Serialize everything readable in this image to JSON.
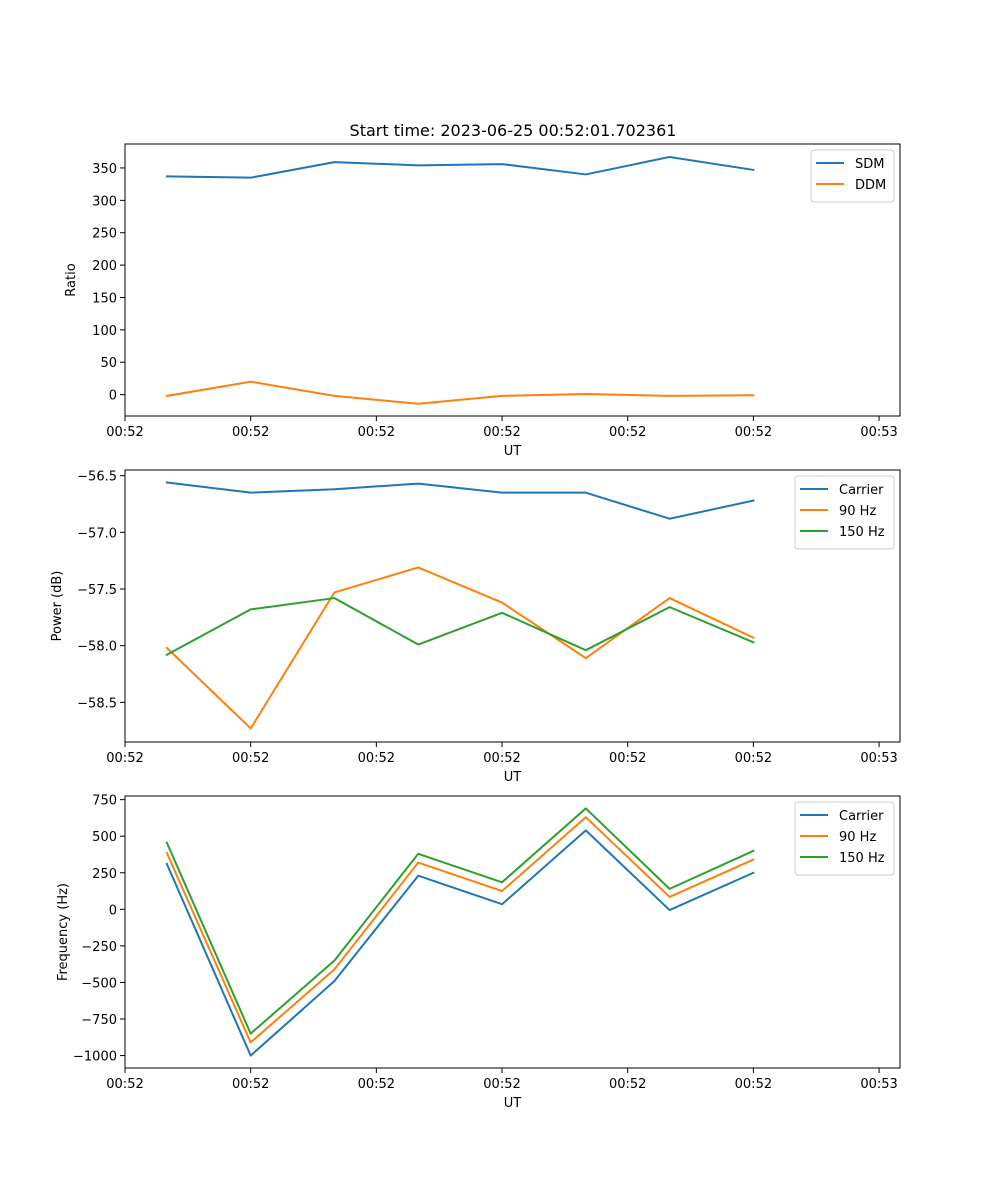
{
  "figure": {
    "title": "Start time: 2023-06-25 00:52:01.702361"
  },
  "chart_data": [
    {
      "type": "line",
      "title": "Start time: 2023-06-25 00:52:01.702361",
      "xlabel": "UT",
      "ylabel": "Ratio",
      "x_index": [
        0,
        1,
        2,
        3,
        4,
        5,
        6,
        7
      ],
      "xlim": [
        -0.5,
        8.75
      ],
      "x_ticks": [
        -0.5,
        1.0,
        2.5,
        4.0,
        5.5,
        7.0,
        8.5
      ],
      "x_tick_labels": [
        "00:52",
        "00:52",
        "00:52",
        "00:52",
        "00:52",
        "00:52",
        "00:53"
      ],
      "ylim": [
        -33,
        387
      ],
      "y_ticks": [
        0,
        50,
        100,
        150,
        200,
        250,
        300,
        350
      ],
      "y_tick_labels": [
        "0",
        "50",
        "100",
        "150",
        "200",
        "250",
        "300",
        "350"
      ],
      "legend_position": "top-right",
      "grid": false,
      "series": [
        {
          "name": "SDM",
          "color": "#1f77b4",
          "values": [
            337,
            335,
            359,
            354,
            356,
            340,
            367,
            347
          ]
        },
        {
          "name": "DDM",
          "color": "#ff7f0e",
          "values": [
            -2,
            20,
            -2,
            -14,
            -2,
            1,
            -2,
            -1
          ]
        }
      ]
    },
    {
      "type": "line",
      "xlabel": "UT",
      "ylabel": "Power (dB)",
      "x_index": [
        0,
        1,
        2,
        3,
        4,
        5,
        6,
        7
      ],
      "xlim": [
        -0.5,
        8.75
      ],
      "x_ticks": [
        -0.5,
        1.0,
        2.5,
        4.0,
        5.5,
        7.0,
        8.5
      ],
      "x_tick_labels": [
        "00:52",
        "00:52",
        "00:52",
        "00:52",
        "00:52",
        "00:52",
        "00:53"
      ],
      "ylim": [
        -58.85,
        -56.45
      ],
      "y_ticks": [
        -58.5,
        -58.0,
        -57.5,
        -57.0,
        -56.5
      ],
      "y_tick_labels": [
        "−58.5",
        "−58.0",
        "−57.5",
        "−57.0",
        "−56.5"
      ],
      "legend_position": "top-right",
      "grid": false,
      "series": [
        {
          "name": "Carrier",
          "color": "#1f77b4",
          "values": [
            -56.56,
            -56.65,
            -56.62,
            -56.57,
            -56.65,
            -56.65,
            -56.88,
            -56.72
          ]
        },
        {
          "name": "90 Hz",
          "color": "#ff7f0e",
          "values": [
            -58.02,
            -58.73,
            -57.53,
            -57.31,
            -57.62,
            -58.11,
            -57.58,
            -57.93
          ]
        },
        {
          "name": "150 Hz",
          "color": "#2ca02c",
          "values": [
            -58.08,
            -57.68,
            -57.58,
            -57.99,
            -57.71,
            -58.04,
            -57.66,
            -57.97
          ]
        }
      ]
    },
    {
      "type": "line",
      "xlabel": "UT",
      "ylabel": "Frequency (Hz)",
      "x_index": [
        0,
        1,
        2,
        3,
        4,
        5,
        6,
        7
      ],
      "xlim": [
        -0.5,
        8.75
      ],
      "x_ticks": [
        -0.5,
        1.0,
        2.5,
        4.0,
        5.5,
        7.0,
        8.5
      ],
      "x_tick_labels": [
        "00:52",
        "00:52",
        "00:52",
        "00:52",
        "00:52",
        "00:52",
        "00:53"
      ],
      "ylim": [
        -1085,
        775
      ],
      "y_ticks": [
        -1000,
        -750,
        -500,
        -250,
        0,
        250,
        500,
        750
      ],
      "y_tick_labels": [
        "−1000",
        "−750",
        "−500",
        "−250",
        "0",
        "250",
        "500",
        "750"
      ],
      "legend_position": "top-right",
      "grid": false,
      "series": [
        {
          "name": "Carrier",
          "color": "#1f77b4",
          "values": [
            310,
            -1000,
            -490,
            230,
            35,
            540,
            -5,
            250
          ]
        },
        {
          "name": "90 Hz",
          "color": "#ff7f0e",
          "values": [
            385,
            -910,
            -410,
            320,
            125,
            630,
            85,
            340
          ]
        },
        {
          "name": "150 Hz",
          "color": "#2ca02c",
          "values": [
            455,
            -850,
            -350,
            380,
            185,
            690,
            140,
            400
          ]
        }
      ]
    }
  ]
}
